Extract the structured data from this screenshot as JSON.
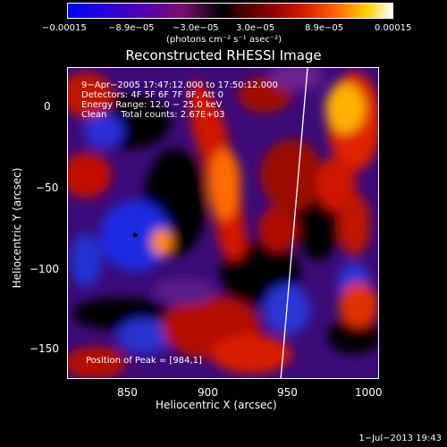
{
  "colorbar": {
    "ticks": [
      "−0.00015",
      "−8.9e−05",
      "−3.0e−05",
      "3.0e−05",
      "8.9e−05",
      "0.00015"
    ],
    "unit": "(photons cm⁻² s⁻¹ asec⁻²)"
  },
  "title": "Reconstructed RHESSI Image",
  "info": {
    "line1": "9−Apr−2005 17:47:12.000 to 17:50:12.000",
    "line2": "Detectors: 4F 5F 6F 7F 8F, Att 0",
    "line3": "Energy Range: 12.0 − 25.0 keV",
    "line4": "Clean     Total counts: 2.67E+03",
    "peak": "Position of Peak = [984,1]"
  },
  "axes": {
    "xlabel": "Heliocentric X (arcsec)",
    "ylabel": "Heliocentric Y (arcsec)",
    "xticks": [
      "850",
      "900",
      "950",
      "1000"
    ],
    "yticks": [
      "0",
      "−50",
      "−100",
      "−150"
    ]
  },
  "timestamp": "1−Jul−2013 19:43"
}
